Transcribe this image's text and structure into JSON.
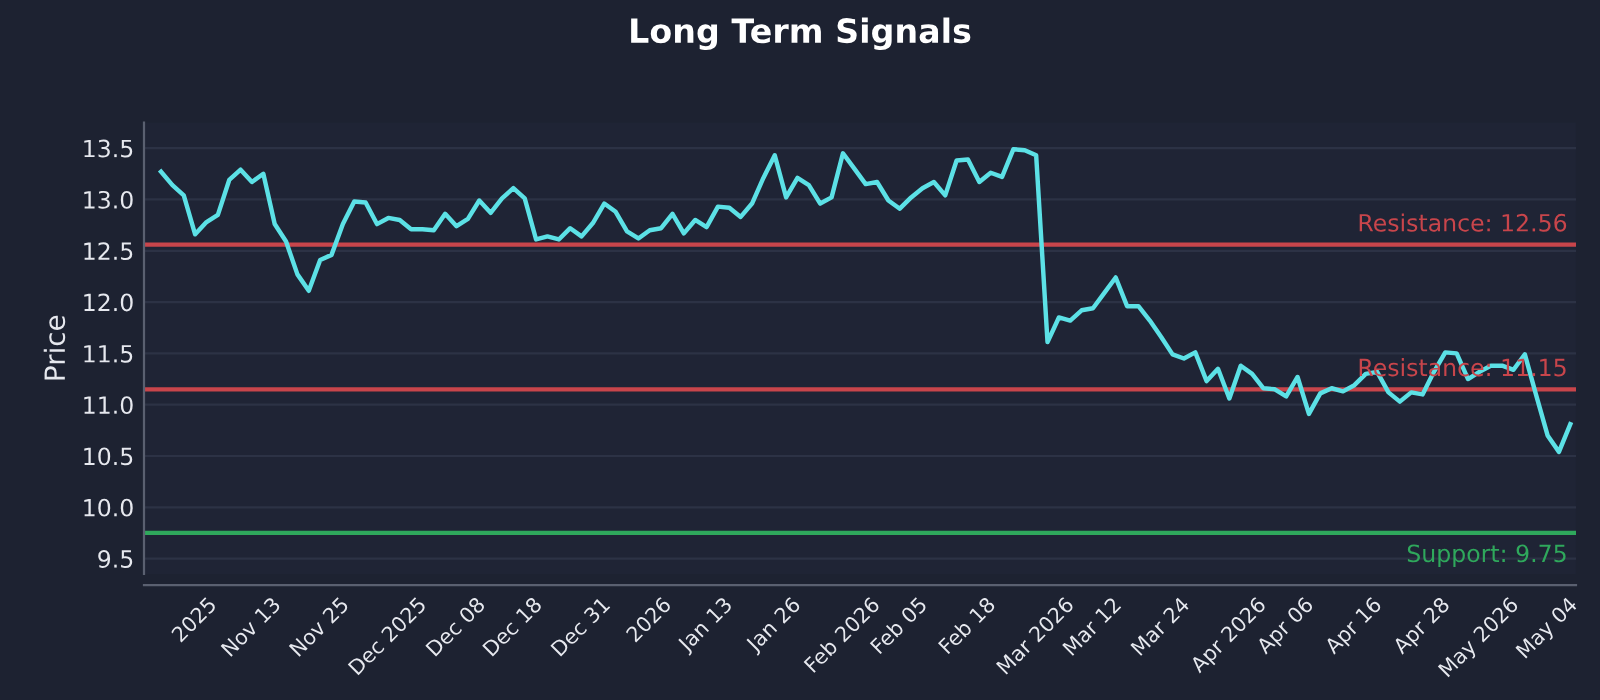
{
  "chart_data": {
    "type": "line",
    "title": "Long Term Signals",
    "ylabel": "Price",
    "categories": [
      null,
      null,
      null,
      "2025",
      null,
      null,
      null,
      null,
      "Nov 13",
      null,
      null,
      null,
      null,
      null,
      "Nov 25",
      null,
      null,
      null,
      null,
      null,
      "Dec 2025",
      null,
      null,
      null,
      null,
      null,
      "Dec 08",
      null,
      null,
      null,
      null,
      "Dec 18",
      null,
      null,
      null,
      null,
      null,
      "Dec 31",
      null,
      null,
      null,
      null,
      null,
      "2026",
      null,
      null,
      null,
      null,
      "Jan 13",
      null,
      null,
      null,
      null,
      null,
      "Jan 26",
      null,
      null,
      null,
      null,
      null,
      "Feb 2026",
      null,
      null,
      null,
      null,
      "Feb 05",
      null,
      null,
      null,
      null,
      null,
      "Feb 18",
      null,
      null,
      null,
      null,
      null,
      "Mar 2026",
      null,
      null,
      null,
      null,
      "Mar 12",
      null,
      null,
      null,
      null,
      null,
      "Mar 24",
      null,
      null,
      null,
      null,
      null,
      "Apr 2026",
      null,
      null,
      null,
      null,
      "Apr 06",
      null,
      null,
      null,
      null,
      null,
      "Apr 16",
      null,
      null,
      null,
      null,
      null,
      "Apr 28",
      null,
      null,
      null,
      null,
      "May 2026",
      null,
      null,
      null,
      null,
      null,
      "May 04",
      null,
      null
    ],
    "series": [
      {
        "color": "#5ce1e6",
        "values": [
          13.27,
          13.14,
          13.04,
          12.66,
          12.78,
          12.85,
          13.19,
          13.29,
          13.17,
          13.25,
          12.76,
          12.59,
          12.27,
          12.11,
          12.41,
          12.46,
          12.76,
          12.98,
          12.97,
          12.76,
          12.82,
          12.8,
          12.71,
          12.71,
          12.7,
          12.86,
          12.74,
          12.81,
          12.99,
          12.87,
          13.01,
          13.11,
          13.01,
          12.61,
          12.64,
          12.61,
          12.72,
          12.64,
          12.77,
          12.96,
          12.88,
          12.69,
          12.62,
          12.7,
          12.72,
          12.86,
          12.67,
          12.8,
          12.73,
          12.93,
          12.92,
          12.83,
          12.96,
          13.21,
          13.43,
          13.02,
          13.21,
          13.14,
          12.96,
          13.02,
          13.45,
          13.3,
          13.15,
          13.17,
          12.99,
          12.91,
          13.02,
          13.11,
          13.17,
          13.04,
          13.38,
          13.39,
          13.17,
          13.26,
          13.22,
          13.49,
          13.48,
          13.43,
          11.61,
          11.85,
          11.82,
          11.92,
          11.94,
          12.09,
          12.24,
          11.96,
          11.96,
          11.82,
          11.66,
          11.49,
          11.45,
          11.51,
          11.23,
          11.35,
          11.06,
          11.38,
          11.3,
          11.16,
          11.15,
          11.08,
          11.27,
          10.91,
          11.11,
          11.16,
          11.13,
          11.19,
          11.3,
          11.32,
          11.12,
          11.03,
          11.12,
          11.1,
          11.32,
          11.51,
          11.5,
          11.25,
          11.32,
          11.38,
          11.38,
          11.34,
          11.49,
          11.09,
          10.7,
          10.54,
          10.81
        ]
      }
    ],
    "ylim": [
      9.35,
      13.75
    ],
    "yticks": [
      9.5,
      {
        "value": 10,
        "label": "10.0"
      },
      10.5,
      {
        "value": 11,
        "label": "11.0"
      },
      11.5,
      {
        "value": 12,
        "label": "12.0"
      },
      12.5,
      {
        "value": 13,
        "label": "13.0"
      },
      13.5
    ],
    "grid": "y",
    "legend": false,
    "line_style": "solid",
    "marker": "none",
    "ref_lines": [
      {
        "axis": "y",
        "value": 12.56,
        "label": "Resistance: 12.56",
        "color": "#c8454b"
      },
      {
        "axis": "y",
        "value": 11.15,
        "label": "Resistance: 11.15",
        "color": "#c8454b"
      },
      {
        "axis": "y",
        "value": 9.75,
        "label": "Support: 9.75",
        "color": "#2fa85c"
      }
    ]
  }
}
